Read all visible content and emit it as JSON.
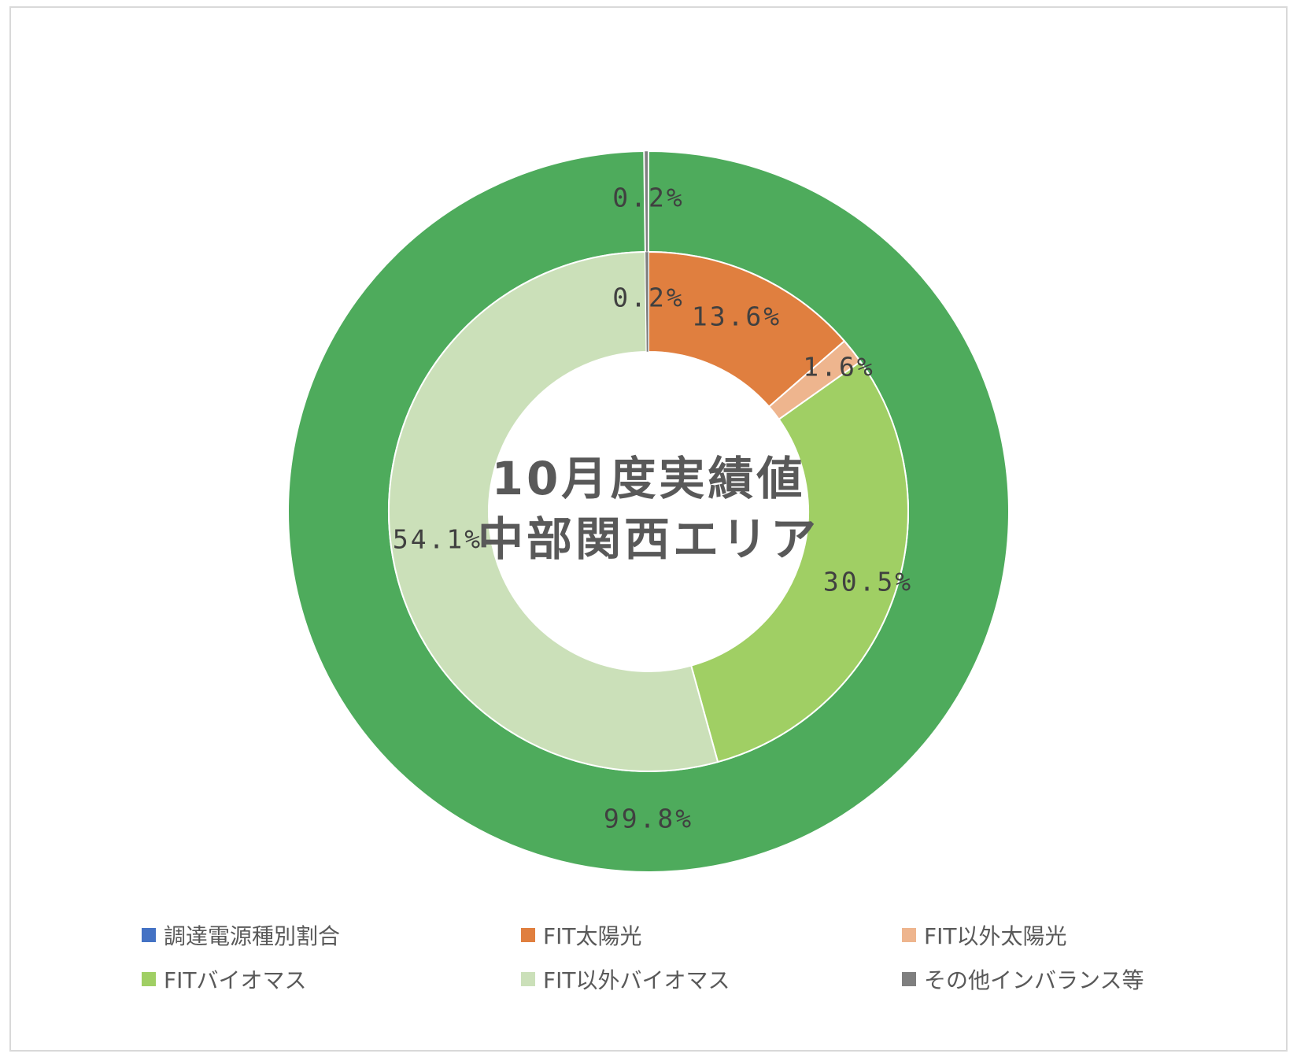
{
  "chart_data": {
    "type": "pie",
    "center_title": [
      "10月度実績値",
      "中部関西エリア"
    ],
    "rings": [
      {
        "ring": "outer",
        "slices": [
          {
            "category": "調達電源種別割合",
            "value": 99.8,
            "label": "99.8%",
            "color": "#4EAB5C"
          },
          {
            "category": "その他インバランス等",
            "value": 0.2,
            "label": "0.2%",
            "color": "#7F7F7F"
          }
        ]
      },
      {
        "ring": "inner",
        "slices": [
          {
            "category": "FIT太陽光",
            "value": 13.6,
            "label": "13.6%",
            "color": "#E07F3F"
          },
          {
            "category": "FIT以外太陽光",
            "value": 1.6,
            "label": "1.6%",
            "color": "#EEB58E"
          },
          {
            "category": "FITバイオマス",
            "value": 30.5,
            "label": "30.5%",
            "color": "#A0CF64"
          },
          {
            "category": "FIT以外バイオマス",
            "value": 54.1,
            "label": "54.1%",
            "color": "#CBE0B9"
          },
          {
            "category": "その他インバランス等",
            "value": 0.2,
            "label": "0.2%",
            "color": "#7F7F7F"
          }
        ]
      }
    ],
    "legend": [
      {
        "label": "調達電源種別割合",
        "color": "#4472C4"
      },
      {
        "label": "FIT太陽光",
        "color": "#E07F3F"
      },
      {
        "label": "FIT以外太陽光",
        "color": "#EEB58E"
      },
      {
        "label": "FITバイオマス",
        "color": "#A0CF64"
      },
      {
        "label": "FIT以外バイオマス",
        "color": "#CBE0B9"
      },
      {
        "label": "その他インバランス等",
        "color": "#7F7F7F"
      }
    ],
    "legend_position": "bottom"
  }
}
